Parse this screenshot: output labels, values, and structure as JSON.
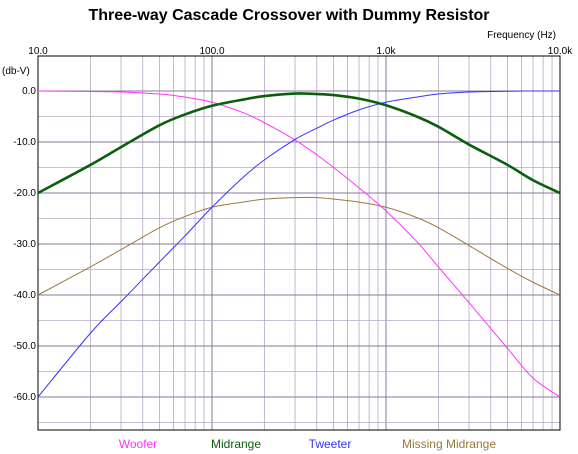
{
  "chart_data": {
    "type": "line",
    "title": "Three-way Cascade Crossover with Dummy Resistor",
    "xlabel": "Frequency  (Hz)",
    "ylabel": "(db-V)",
    "x_scale": "log",
    "xlim": [
      10,
      10000
    ],
    "ylim": [
      -65,
      0
    ],
    "grid": true,
    "legend_position": "bottom",
    "x_ticks": [
      "10.0",
      "100.0",
      "1.0k",
      "10.0k"
    ],
    "y_ticks": [
      "0.0",
      "-10.0",
      "-20.0",
      "-30.0",
      "-40.0",
      "-50.0",
      "-60.0"
    ],
    "x": [
      10,
      20,
      30,
      50,
      70,
      100,
      150,
      200,
      300,
      400,
      500,
      700,
      1000,
      1500,
      2000,
      3000,
      5000,
      7000,
      10000
    ],
    "series": [
      {
        "name": "Woofer",
        "color": "#ff33ff",
        "values": [
          0,
          -0.1,
          -0.2,
          -0.6,
          -1.2,
          -2.2,
          -4.2,
          -6.2,
          -9.6,
          -12.5,
          -15,
          -19,
          -23.5,
          -29.5,
          -34.5,
          -41.5,
          -50.5,
          -56.3,
          -60
        ]
      },
      {
        "name": "Midrange",
        "color": "#0b5f0b",
        "values": [
          -20,
          -14.5,
          -11,
          -6.7,
          -4.6,
          -2.9,
          -1.7,
          -1,
          -0.5,
          -0.6,
          -0.8,
          -1.5,
          -2.8,
          -5,
          -7,
          -10.5,
          -14.5,
          -17.5,
          -20
        ]
      },
      {
        "name": "Tweeter",
        "color": "#3333ff",
        "values": [
          -60,
          -47.5,
          -41.3,
          -33.5,
          -28.4,
          -22.8,
          -17,
          -13.5,
          -9.5,
          -7.3,
          -5.7,
          -3.7,
          -2.2,
          -1.2,
          -0.6,
          -0.2,
          -0.05,
          0,
          0
        ]
      },
      {
        "name": "Missing Midrange",
        "color": "#9a7a3a",
        "values": [
          -40,
          -34.5,
          -31.1,
          -26.8,
          -24.6,
          -22.8,
          -21.8,
          -21.2,
          -20.9,
          -20.9,
          -21.2,
          -21.8,
          -22.8,
          -24.8,
          -26.8,
          -30.3,
          -34.8,
          -37.5,
          -40
        ]
      }
    ]
  }
}
